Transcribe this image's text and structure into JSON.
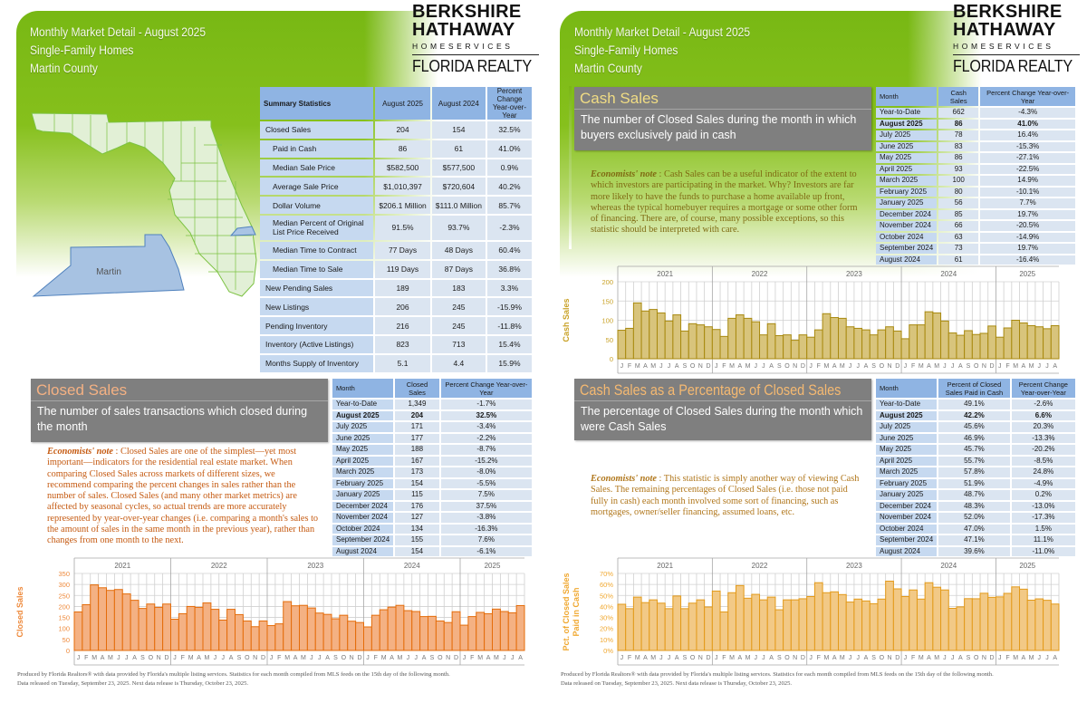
{
  "header": {
    "line1": "Monthly Market Detail - August 2025",
    "line2": "Single-Family Homes",
    "line3": "Martin County"
  },
  "logo": {
    "line1": "BERKSHIRE",
    "line2": "HATHAWAY",
    "line3": "HOMESERVICES",
    "line4": "FLORIDA REALTY"
  },
  "map": {
    "county_label": "Martin"
  },
  "summary": {
    "headers": [
      "Summary Statistics",
      "August 2025",
      "August 2024",
      "Percent Change Year-over-Year"
    ],
    "rows": [
      [
        "Closed Sales",
        "204",
        "154",
        "32.5%"
      ],
      [
        "Paid in Cash",
        "86",
        "61",
        "41.0%"
      ],
      [
        "Median Sale Price",
        "$582,500",
        "$577,500",
        "0.9%"
      ],
      [
        "Average Sale Price",
        "$1,010,397",
        "$720,604",
        "40.2%"
      ],
      [
        "Dollar Volume",
        "$206.1 Million",
        "$111.0 Million",
        "85.7%"
      ],
      [
        "Median Percent of Original List Price Received",
        "91.5%",
        "93.7%",
        "-2.3%"
      ],
      [
        "Median Time to Contract",
        "77 Days",
        "48 Days",
        "60.4%"
      ],
      [
        "Median Time to Sale",
        "119 Days",
        "87 Days",
        "36.8%"
      ],
      [
        "New Pending Sales",
        "189",
        "183",
        "3.3%"
      ],
      [
        "New Listings",
        "206",
        "245",
        "-15.9%"
      ],
      [
        "Pending Inventory",
        "216",
        "245",
        "-11.8%"
      ],
      [
        "Inventory (Active Listings)",
        "823",
        "713",
        "15.4%"
      ],
      [
        "Months Supply of Inventory",
        "5.1",
        "4.4",
        "15.9%"
      ]
    ]
  },
  "closed_sales": {
    "title": "Closed Sales",
    "subtitle": "The number of sales transactions which closed during the month",
    "note_label": "Economists' note",
    "note_text": " :  Closed Sales are one of the simplest—yet most important—indicators for the residential real estate market.  When comparing Closed Sales across markets of different sizes, we recommend comparing the percent changes in sales rather than the number of sales.  Closed Sales (and many other market metrics) are affected by seasonal cycles, so actual trends are more accurately represented by year-over-year changes (i.e. comparing a month's sales to the amount of sales in the same month in the previous year), rather than changes from one month to the next.",
    "table": {
      "headers": [
        "Month",
        "Closed Sales",
        "Percent Change Year-over-Year"
      ],
      "rows": [
        [
          "Year-to-Date",
          "1,349",
          "-1.7%"
        ],
        [
          "August 2025",
          "204",
          "32.5%"
        ],
        [
          "July 2025",
          "171",
          "-3.4%"
        ],
        [
          "June 2025",
          "177",
          "-2.2%"
        ],
        [
          "May 2025",
          "188",
          "-8.7%"
        ],
        [
          "April 2025",
          "167",
          "-15.2%"
        ],
        [
          "March 2025",
          "173",
          "-8.0%"
        ],
        [
          "February 2025",
          "154",
          "-5.5%"
        ],
        [
          "January 2025",
          "115",
          "7.5%"
        ],
        [
          "December 2024",
          "176",
          "37.5%"
        ],
        [
          "November 2024",
          "127",
          "-3.8%"
        ],
        [
          "October 2024",
          "134",
          "-16.3%"
        ],
        [
          "September 2024",
          "155",
          "7.6%"
        ],
        [
          "August 2024",
          "154",
          "-6.1%"
        ]
      ]
    }
  },
  "cash_sales": {
    "title": "Cash Sales",
    "subtitle": "The number of Closed Sales during the month in which buyers exclusively paid in cash",
    "note_label": "Economists' note",
    "note_text": " :  Cash Sales can be a useful indicator of the extent to which investors are participating in the market.  Why?  Investors are far more likely to have the funds to purchase a home available up front, whereas the typical homebuyer requires a mortgage or some other form of financing.  There are, of course, many possible exceptions, so this statistic should be interpreted with care.",
    "table": {
      "headers": [
        "Month",
        "Cash Sales",
        "Percent Change Year-over-Year"
      ],
      "rows": [
        [
          "Year-to-Date",
          "662",
          "-4.3%"
        ],
        [
          "August 2025",
          "86",
          "41.0%"
        ],
        [
          "July 2025",
          "78",
          "16.4%"
        ],
        [
          "June 2025",
          "83",
          "-15.3%"
        ],
        [
          "May 2025",
          "86",
          "-27.1%"
        ],
        [
          "April 2025",
          "93",
          "-22.5%"
        ],
        [
          "March 2025",
          "100",
          "14.9%"
        ],
        [
          "February 2025",
          "80",
          "-10.1%"
        ],
        [
          "January 2025",
          "56",
          "7.7%"
        ],
        [
          "December 2024",
          "85",
          "19.7%"
        ],
        [
          "November 2024",
          "66",
          "-20.5%"
        ],
        [
          "October 2024",
          "63",
          "-14.9%"
        ],
        [
          "September 2024",
          "73",
          "19.7%"
        ],
        [
          "August 2024",
          "61",
          "-16.4%"
        ]
      ]
    }
  },
  "cash_pct": {
    "title": "Cash Sales as a Percentage of Closed Sales",
    "subtitle": "The percentage of Closed Sales during the month which were Cash Sales",
    "note_label": "Economists' note",
    "note_text": " :  This statistic is simply another way of viewing Cash Sales.  The remaining percentages of Closed Sales (i.e. those not paid fully in cash) each month involved some sort of financing, such as mortgages, owner/seller financing, assumed loans, etc.",
    "table": {
      "headers": [
        "Month",
        "Percent of Closed Sales Paid in Cash",
        "Percent Change Year-over-Year"
      ],
      "rows": [
        [
          "Year-to-Date",
          "49.1%",
          "-2.6%"
        ],
        [
          "August 2025",
          "42.2%",
          "6.6%"
        ],
        [
          "July 2025",
          "45.6%",
          "20.3%"
        ],
        [
          "June 2025",
          "46.9%",
          "-13.3%"
        ],
        [
          "May 2025",
          "45.7%",
          "-20.2%"
        ],
        [
          "April 2025",
          "55.7%",
          "-8.5%"
        ],
        [
          "March 2025",
          "57.8%",
          "24.8%"
        ],
        [
          "February 2025",
          "51.9%",
          "-4.9%"
        ],
        [
          "January 2025",
          "48.7%",
          "0.2%"
        ],
        [
          "December 2024",
          "48.3%",
          "-13.0%"
        ],
        [
          "November 2024",
          "52.0%",
          "-17.3%"
        ],
        [
          "October 2024",
          "47.0%",
          "1.5%"
        ],
        [
          "September 2024",
          "47.1%",
          "11.1%"
        ],
        [
          "August 2024",
          "39.6%",
          "-11.0%"
        ]
      ]
    }
  },
  "footer": {
    "line1": "Produced by Florida Realtors® with data provided by Florida's multiple listing services. Statistics for each month compiled from MLS feeds on the 15th day of the following month.",
    "line2": "Data released on Tuesday, September 23, 2025. Next data release is Thursday, October 23, 2025."
  },
  "chart_data": [
    {
      "type": "bar",
      "title": "",
      "ylabel": "Closed Sales",
      "xlabel": "",
      "ylim": [
        0,
        350
      ],
      "yticks": [
        0,
        50,
        100,
        150,
        200,
        250,
        300,
        350
      ],
      "ytick_labels": [
        "0",
        "50",
        "100",
        "150",
        "200",
        "250",
        "300",
        "350"
      ],
      "years": [
        "2021",
        "2022",
        "2023",
        "2024",
        "2025"
      ],
      "month_letters": [
        "J",
        "F",
        "M",
        "A",
        "M",
        "J",
        "J",
        "A",
        "S",
        "O",
        "N",
        "D"
      ],
      "values": [
        175,
        208,
        298,
        285,
        273,
        277,
        257,
        228,
        191,
        211,
        196,
        211,
        142,
        167,
        200,
        196,
        216,
        187,
        138,
        187,
        163,
        134,
        108,
        134,
        113,
        121,
        222,
        203,
        205,
        193,
        170,
        164,
        144,
        160,
        133,
        127,
        107,
        160,
        185,
        197,
        205,
        181,
        177,
        154,
        155,
        134,
        127,
        176,
        115,
        154,
        173,
        167,
        188,
        177,
        171,
        204
      ],
      "colors": {
        "fill": "#f4b183",
        "stroke": "#e46c0a",
        "label": "#ee8a3c"
      }
    },
    {
      "type": "bar",
      "title": "",
      "ylabel": "Cash Sales",
      "xlabel": "",
      "ylim": [
        0,
        200
      ],
      "yticks": [
        0,
        50,
        100,
        150,
        200
      ],
      "ytick_labels": [
        "0",
        "50",
        "100",
        "150",
        "200"
      ],
      "years": [
        "2021",
        "2022",
        "2023",
        "2024",
        "2025"
      ],
      "month_letters": [
        "J",
        "F",
        "M",
        "A",
        "M",
        "J",
        "J",
        "A",
        "S",
        "O",
        "N",
        "D"
      ],
      "values": [
        74,
        79,
        145,
        124,
        128,
        119,
        98,
        114,
        72,
        91,
        88,
        83,
        76,
        58,
        105,
        114,
        105,
        96,
        62,
        91,
        60,
        62,
        48,
        62,
        56,
        75,
        117,
        107,
        105,
        83,
        79,
        75,
        62,
        75,
        83,
        72,
        52,
        88,
        88,
        122,
        119,
        98,
        67,
        61,
        73,
        63,
        66,
        85,
        56,
        80,
        100,
        93,
        86,
        83,
        78,
        86
      ],
      "colors": {
        "fill": "#d8c47c",
        "stroke": "#a8890f",
        "label": "#c9a227"
      }
    },
    {
      "type": "bar",
      "title": "",
      "ylabel": "Pct. of Closed Sales Paid in Cash",
      "xlabel": "",
      "ylim": [
        0,
        70
      ],
      "yticks": [
        0,
        10,
        20,
        30,
        40,
        50,
        60,
        70
      ],
      "ytick_labels": [
        "0%",
        "10%",
        "20%",
        "30%",
        "40%",
        "50%",
        "60%",
        "70%"
      ],
      "years": [
        "2021",
        "2022",
        "2023",
        "2024",
        "2025"
      ],
      "month_letters": [
        "J",
        "F",
        "M",
        "A",
        "M",
        "J",
        "J",
        "A",
        "S",
        "O",
        "N",
        "D"
      ],
      "values": [
        42,
        38,
        48.5,
        43.5,
        46,
        43,
        38,
        49.5,
        38,
        43,
        46,
        39.5,
        54,
        35,
        52.5,
        59,
        47.5,
        51,
        46,
        48.5,
        37,
        46,
        46,
        47,
        49,
        61.6,
        52.5,
        53.3,
        50.8,
        44,
        46.7,
        45,
        42.5,
        46.7,
        63,
        56,
        49,
        55,
        46.7,
        61.6,
        57.5,
        55,
        38.3,
        39.6,
        47.1,
        47,
        52,
        48.3,
        48.7,
        51.9,
        57.8,
        55.7,
        45.7,
        46.9,
        45.6,
        42.2
      ],
      "colors": {
        "fill": "#f2c986",
        "stroke": "#e39a1a",
        "label": "#f0a830"
      }
    }
  ]
}
